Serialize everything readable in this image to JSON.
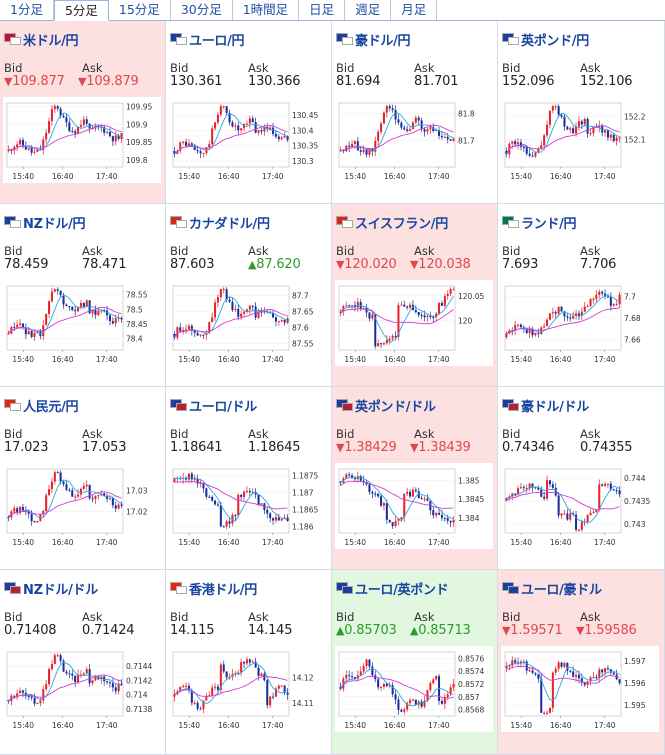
{
  "tabs": [
    {
      "label": "1分足",
      "active": false
    },
    {
      "label": "5分足",
      "active": true
    },
    {
      "label": "15分足",
      "active": false
    },
    {
      "label": "30分足",
      "active": false
    },
    {
      "label": "1時間足",
      "active": false
    },
    {
      "label": "日足",
      "active": false
    },
    {
      "label": "週足",
      "active": false
    },
    {
      "label": "月足",
      "active": false
    }
  ],
  "labels": {
    "bid": "Bid",
    "ask": "Ask"
  },
  "colors": {
    "down_bg": "#fde1e1",
    "up_bg": "#e2f7e0",
    "down_text": "#e0484d",
    "up_text": "#2f9a2c",
    "pair_text": "#1845a0",
    "candle_up": "#e8222a",
    "candle_down": "#1a2d9c",
    "ma_short": "#2aa9e0",
    "ma_long": "#d43cd4"
  },
  "x_ticks": [
    "15:40",
    "16:40",
    "17:40"
  ],
  "pairs": [
    {
      "name": "米ドル/円",
      "flags": [
        "#c8102e",
        "#ffffff"
      ],
      "state": "down",
      "bid": "109.877",
      "ask": "109.879",
      "bid_dir": "down",
      "ask_dir": "down",
      "y_ticks": [
        "109.95",
        "109.9",
        "109.85",
        "109.8"
      ],
      "ylim": [
        109.78,
        109.96
      ],
      "shape": "A"
    },
    {
      "name": "ユーロ/円",
      "flags": [
        "#1a3fa0",
        "#ffffff"
      ],
      "state": "none",
      "bid": "130.361",
      "ask": "130.366",
      "bid_dir": "none",
      "ask_dir": "none",
      "y_ticks": [
        "130.45",
        "130.4",
        "130.35",
        "130.3"
      ],
      "ylim": [
        130.28,
        130.49
      ],
      "shape": "A"
    },
    {
      "name": "豪ドル/円",
      "flags": [
        "#1a3fa0",
        "#ffffff"
      ],
      "state": "none",
      "bid": "81.694",
      "ask": "81.701",
      "bid_dir": "none",
      "ask_dir": "none",
      "y_ticks": [
        "81.8",
        "81.7"
      ],
      "ylim": [
        81.6,
        81.84
      ],
      "shape": "A"
    },
    {
      "name": "英ポンド/円",
      "flags": [
        "#1a3fa0",
        "#ffffff"
      ],
      "state": "none",
      "bid": "152.096",
      "ask": "152.106",
      "bid_dir": "none",
      "ask_dir": "none",
      "y_ticks": [
        "152.2",
        "152.1"
      ],
      "ylim": [
        151.98,
        152.26
      ],
      "shape": "A"
    },
    {
      "name": "NZドル/円",
      "flags": [
        "#1a3fa0",
        "#ffffff"
      ],
      "state": "none",
      "bid": "78.459",
      "ask": "78.471",
      "bid_dir": "none",
      "ask_dir": "none",
      "y_ticks": [
        "78.55",
        "78.5",
        "78.45",
        "78.4"
      ],
      "ylim": [
        78.36,
        78.58
      ],
      "shape": "A"
    },
    {
      "name": "カナダドル/円",
      "flags": [
        "#d52b1e",
        "#ffffff"
      ],
      "state": "none",
      "bid": "87.603",
      "ask": "87.620",
      "bid_dir": "none",
      "ask_dir": "up",
      "y_ticks": [
        "87.7",
        "87.65",
        "87.6",
        "87.55"
      ],
      "ylim": [
        87.53,
        87.73
      ],
      "shape": "A"
    },
    {
      "name": "スイスフラン/円",
      "flags": [
        "#d52b1e",
        "#ffffff"
      ],
      "state": "down",
      "bid": "120.020",
      "ask": "120.038",
      "bid_dir": "down",
      "ask_dir": "down",
      "y_ticks": [
        "120.05",
        "120"
      ],
      "ylim": [
        119.94,
        120.07
      ],
      "shape": "B"
    },
    {
      "name": "ランド/円",
      "flags": [
        "#007a4d",
        "#ffffff"
      ],
      "state": "none",
      "bid": "7.693",
      "ask": "7.706",
      "bid_dir": "none",
      "ask_dir": "none",
      "y_ticks": [
        "7.7",
        "7.68",
        "7.66"
      ],
      "ylim": [
        7.65,
        7.71
      ],
      "shape": "C"
    },
    {
      "name": "人民元/円",
      "flags": [
        "#de2910",
        "#ffffff"
      ],
      "state": "none",
      "bid": "17.023",
      "ask": "17.053",
      "bid_dir": "none",
      "ask_dir": "none",
      "y_ticks": [
        "17.03",
        "17.02"
      ],
      "ylim": [
        17.01,
        17.04
      ],
      "shape": "A"
    },
    {
      "name": "ユーロ/ドル",
      "flags": [
        "#1a3fa0",
        "#b22234"
      ],
      "state": "none",
      "bid": "1.18641",
      "ask": "1.18645",
      "bid_dir": "none",
      "ask_dir": "none",
      "y_ticks": [
        "1.1875",
        "1.187",
        "1.1865",
        "1.186"
      ],
      "ylim": [
        1.1858,
        1.1877
      ],
      "shape": "D"
    },
    {
      "name": "英ポンド/ドル",
      "flags": [
        "#1a3fa0",
        "#b22234"
      ],
      "state": "down",
      "bid": "1.38429",
      "ask": "1.38439",
      "bid_dir": "down",
      "ask_dir": "down",
      "y_ticks": [
        "1.385",
        "1.3845",
        "1.384"
      ],
      "ylim": [
        1.3836,
        1.3853
      ],
      "shape": "D"
    },
    {
      "name": "豪ドル/ドル",
      "flags": [
        "#1a3fa0",
        "#b22234"
      ],
      "state": "none",
      "bid": "0.74346",
      "ask": "0.74355",
      "bid_dir": "none",
      "ask_dir": "none",
      "y_ticks": [
        "0.744",
        "0.7435",
        "0.743"
      ],
      "ylim": [
        0.7428,
        0.7442
      ],
      "shape": "E"
    },
    {
      "name": "NZドル/ドル",
      "flags": [
        "#1a3fa0",
        "#b22234"
      ],
      "state": "none",
      "bid": "0.71408",
      "ask": "0.71424",
      "bid_dir": "none",
      "ask_dir": "none",
      "y_ticks": [
        "0.7144",
        "0.7142",
        "0.714",
        "0.7138"
      ],
      "ylim": [
        0.7137,
        0.7146
      ],
      "shape": "A"
    },
    {
      "name": "香港ドル/円",
      "flags": [
        "#de2910",
        "#ffffff"
      ],
      "state": "none",
      "bid": "14.115",
      "ask": "14.145",
      "bid_dir": "none",
      "ask_dir": "none",
      "y_ticks": [
        "14.12",
        "14.11"
      ],
      "ylim": [
        14.105,
        14.13
      ],
      "shape": "F"
    },
    {
      "name": "ユーロ/英ポンド",
      "flags": [
        "#1a3fa0",
        "#1a3fa0"
      ],
      "state": "up",
      "bid": "0.85703",
      "ask": "0.85713",
      "bid_dir": "up",
      "ask_dir": "up",
      "y_ticks": [
        "0.8576",
        "0.8574",
        "0.8572",
        "0.857",
        "0.8568"
      ],
      "ylim": [
        0.8567,
        0.8577
      ],
      "shape": "G"
    },
    {
      "name": "ユーロ/豪ドル",
      "flags": [
        "#1a3fa0",
        "#1a3fa0"
      ],
      "state": "down",
      "bid": "1.59571",
      "ask": "1.59586",
      "bid_dir": "down",
      "ask_dir": "down",
      "y_ticks": [
        "1.597",
        "1.596",
        "1.595"
      ],
      "ylim": [
        1.5945,
        1.5974
      ],
      "shape": "H"
    }
  ]
}
